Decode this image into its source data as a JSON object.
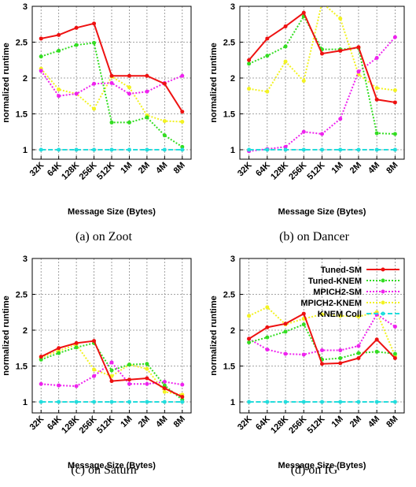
{
  "colors": {
    "Tuned-SM": "#ee1111",
    "Tuned-KNEM": "#33dd22",
    "MPICH2-SM": "#ee22ee",
    "MPICH2-KNEM": "#f2f222",
    "KNEM Coll": "#22dddd"
  },
  "chart_data": [
    {
      "type": "line",
      "caption": "(a) on Zoot",
      "xlabel": "Message Size (Bytes)",
      "ylabel": "normalized runtime",
      "categories": [
        "32K",
        "64K",
        "128K",
        "256K",
        "512K",
        "1M",
        "2M",
        "4M",
        "8M"
      ],
      "yticks": [
        "1",
        "1.5",
        "2",
        "2.5",
        "3"
      ],
      "ylim": [
        0.88,
        3.0
      ],
      "grid": true,
      "show_legend": false,
      "series": [
        {
          "name": "Tuned-SM",
          "values": [
            2.55,
            2.6,
            2.7,
            2.76,
            2.03,
            2.03,
            2.03,
            1.92,
            1.53
          ]
        },
        {
          "name": "Tuned-KNEM",
          "values": [
            2.3,
            2.38,
            2.46,
            2.49,
            1.38,
            1.38,
            1.45,
            1.2,
            1.04
          ]
        },
        {
          "name": "MPICH2-SM",
          "values": [
            2.1,
            1.75,
            1.78,
            1.92,
            1.93,
            1.78,
            1.81,
            1.93,
            2.03
          ]
        },
        {
          "name": "MPICH2-KNEM",
          "values": [
            2.13,
            1.84,
            1.78,
            1.57,
            2.02,
            1.87,
            1.48,
            1.4,
            1.39
          ]
        },
        {
          "name": "KNEM Coll",
          "values": [
            1,
            1,
            1,
            1,
            1,
            1,
            1,
            1,
            1
          ]
        }
      ]
    },
    {
      "type": "line",
      "caption": "(b) on Dancer",
      "xlabel": "Message Size (Bytes)",
      "ylabel": "normalized runtime",
      "categories": [
        "32K",
        "64K",
        "128K",
        "256K",
        "512K",
        "1M",
        "2M",
        "4M",
        "8M"
      ],
      "yticks": [
        "1",
        "1.5",
        "2",
        "2.5",
        "3"
      ],
      "ylim": [
        0.88,
        3.0
      ],
      "grid": true,
      "show_legend": false,
      "series": [
        {
          "name": "Tuned-SM",
          "values": [
            2.25,
            2.55,
            2.72,
            2.91,
            2.34,
            2.38,
            2.43,
            1.7,
            1.66
          ]
        },
        {
          "name": "Tuned-KNEM",
          "values": [
            2.2,
            2.31,
            2.44,
            2.86,
            2.4,
            2.4,
            2.42,
            1.23,
            1.22
          ]
        },
        {
          "name": "MPICH2-SM",
          "values": [
            0.98,
            1.01,
            1.04,
            1.25,
            1.22,
            1.43,
            2.09,
            2.28,
            2.57
          ]
        },
        {
          "name": "MPICH2-KNEM",
          "values": [
            1.85,
            1.81,
            2.23,
            1.96,
            3.05,
            2.83,
            2.05,
            1.86,
            1.83
          ]
        },
        {
          "name": "KNEM Coll",
          "values": [
            1,
            1,
            1,
            1,
            1,
            1,
            1,
            1,
            1
          ]
        }
      ]
    },
    {
      "type": "line",
      "caption": "(c) on Saturn",
      "xlabel": "Message Size (Bytes)",
      "ylabel": "normalized runtime",
      "categories": [
        "32K",
        "64K",
        "128K",
        "256K",
        "512K",
        "1M",
        "2M",
        "4M",
        "8M"
      ],
      "yticks": [
        "1",
        "1.5",
        "2",
        "2.5",
        "3"
      ],
      "ylim": [
        0.88,
        3.0
      ],
      "grid": true,
      "show_legend": false,
      "series": [
        {
          "name": "Tuned-SM",
          "values": [
            1.63,
            1.75,
            1.82,
            1.85,
            1.29,
            1.31,
            1.33,
            1.19,
            1.07
          ]
        },
        {
          "name": "Tuned-KNEM",
          "values": [
            1.59,
            1.68,
            1.76,
            1.82,
            1.44,
            1.52,
            1.53,
            1.23,
            1.03
          ]
        },
        {
          "name": "MPICH2-SM",
          "values": [
            1.25,
            1.23,
            1.22,
            1.36,
            1.55,
            1.25,
            1.25,
            1.28,
            1.24
          ]
        },
        {
          "name": "MPICH2-KNEM",
          "values": [
            1.62,
            1.71,
            1.8,
            1.45,
            1.36,
            1.52,
            1.46,
            1.14,
            1.1
          ]
        },
        {
          "name": "KNEM Coll",
          "values": [
            1,
            1,
            1,
            1,
            1,
            1,
            1,
            1,
            1
          ]
        }
      ]
    },
    {
      "type": "line",
      "caption": "(d) on IG",
      "xlabel": "Message Size (Bytes)",
      "ylabel": "normalized runtime",
      "categories": [
        "32K",
        "64K",
        "128K",
        "256K",
        "512K",
        "1M",
        "2M",
        "4M",
        "8M"
      ],
      "yticks": [
        "1",
        "1.5",
        "2",
        "2.5",
        "3"
      ],
      "ylim": [
        0.88,
        3.0
      ],
      "grid": true,
      "show_legend": true,
      "legend_position": "top-right",
      "series": [
        {
          "name": "Tuned-SM",
          "values": [
            1.88,
            2.04,
            2.09,
            2.23,
            1.53,
            1.54,
            1.61,
            1.87,
            1.61
          ]
        },
        {
          "name": "Tuned-KNEM",
          "values": [
            1.83,
            1.9,
            1.98,
            2.08,
            1.59,
            1.61,
            1.68,
            1.7,
            1.67
          ]
        },
        {
          "name": "MPICH2-SM",
          "values": [
            1.88,
            1.73,
            1.67,
            1.66,
            1.72,
            1.72,
            1.78,
            2.22,
            2.05
          ]
        },
        {
          "name": "MPICH2-KNEM",
          "values": [
            2.2,
            2.32,
            2.08,
            2.16,
            2.22,
            2.2,
            2.19,
            2.25,
            1.64
          ]
        },
        {
          "name": "KNEM Coll",
          "values": [
            1,
            1,
            1,
            1,
            1,
            1,
            1,
            1,
            1
          ]
        }
      ]
    }
  ]
}
